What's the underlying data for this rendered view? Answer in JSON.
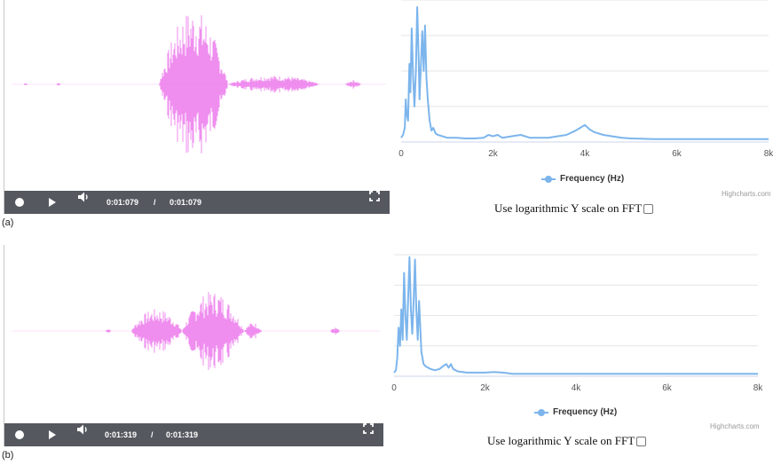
{
  "panels": [
    {
      "tag": "(a)",
      "player": {
        "current_time": "0:01:079",
        "separator": "/",
        "total_time": "0:01:079"
      },
      "fft": {
        "x_ticks": [
          "0",
          "2k",
          "4k",
          "6k",
          "8k"
        ],
        "legend": "Frequency (Hz)",
        "credits": "Highcharts.com",
        "log_label": "Use logarithmic Y scale on FFT",
        "log_checked": false
      }
    },
    {
      "tag": "(b)",
      "player": {
        "current_time": "0:01:319",
        "separator": "/",
        "total_time": "0:01:319"
      },
      "fft": {
        "x_ticks": [
          "0",
          "2k",
          "4k",
          "6k",
          "8k"
        ],
        "legend": "Frequency (Hz)",
        "credits": "Highcharts.com",
        "log_label": "Use logarithmic Y scale on FFT",
        "log_checked": false
      }
    }
  ],
  "colors": {
    "waveform": "#ee82ee",
    "fft_series": "#7cb5ec",
    "player_bar": "#55595f",
    "grid": "#e6e6e6"
  },
  "icons": [
    "record-icon",
    "play-icon",
    "volume-icon",
    "fullscreen-icon",
    "checkbox"
  ],
  "chart_data": [
    {
      "type": "line",
      "title": "",
      "xlabel": "",
      "ylabel": "",
      "x_unit": "Hz",
      "xlim": [
        0,
        8000
      ],
      "ylim": [
        0,
        1
      ],
      "grid": true,
      "legend_position": "bottom-center",
      "series": [
        {
          "name": "Frequency (Hz)",
          "x": [
            0,
            40,
            80,
            100,
            120,
            150,
            180,
            200,
            230,
            260,
            290,
            320,
            350,
            380,
            400,
            430,
            460,
            490,
            520,
            550,
            580,
            620,
            660,
            700,
            750,
            800,
            900,
            1000,
            1200,
            1400,
            1600,
            1800,
            1900,
            2000,
            2100,
            2200,
            2400,
            2600,
            2800,
            3000,
            3200,
            3400,
            3600,
            3800,
            3900,
            4000,
            4100,
            4200,
            4400,
            4600,
            4800,
            5000,
            5500,
            6000,
            6500,
            7000,
            7500,
            8000
          ],
          "values": [
            0.03,
            0.05,
            0.1,
            0.3,
            0.2,
            0.15,
            0.55,
            0.35,
            0.8,
            0.45,
            0.25,
            0.5,
            0.95,
            0.6,
            0.3,
            0.55,
            0.78,
            0.5,
            0.82,
            0.45,
            0.3,
            0.15,
            0.08,
            0.1,
            0.06,
            0.05,
            0.04,
            0.03,
            0.03,
            0.025,
            0.025,
            0.03,
            0.05,
            0.04,
            0.05,
            0.03,
            0.04,
            0.05,
            0.03,
            0.03,
            0.03,
            0.04,
            0.05,
            0.08,
            0.1,
            0.12,
            0.09,
            0.07,
            0.05,
            0.04,
            0.03,
            0.025,
            0.02,
            0.02,
            0.02,
            0.02,
            0.02,
            0.02
          ]
        }
      ]
    },
    {
      "type": "line",
      "title": "",
      "xlabel": "",
      "ylabel": "",
      "x_unit": "Hz",
      "xlim": [
        0,
        8000
      ],
      "ylim": [
        0,
        1
      ],
      "grid": true,
      "legend_position": "bottom-center",
      "series": [
        {
          "name": "Frequency (Hz)",
          "x": [
            0,
            40,
            70,
            100,
            130,
            160,
            190,
            220,
            250,
            280,
            310,
            340,
            370,
            400,
            430,
            460,
            490,
            520,
            550,
            600,
            650,
            700,
            800,
            900,
            1000,
            1100,
            1150,
            1200,
            1250,
            1300,
            1400,
            1600,
            1800,
            2000,
            2200,
            2400,
            2600,
            2800,
            3000,
            3500,
            4000,
            4500,
            5000,
            5500,
            6000,
            6500,
            7000,
            7500,
            8000
          ],
          "values": [
            0.03,
            0.05,
            0.15,
            0.4,
            0.25,
            0.55,
            0.3,
            0.85,
            0.5,
            0.3,
            0.65,
            0.98,
            0.55,
            0.35,
            0.6,
            0.96,
            0.55,
            0.3,
            0.62,
            0.2,
            0.1,
            0.08,
            0.06,
            0.05,
            0.06,
            0.09,
            0.1,
            0.07,
            0.1,
            0.06,
            0.04,
            0.03,
            0.03,
            0.03,
            0.035,
            0.03,
            0.02,
            0.02,
            0.02,
            0.02,
            0.02,
            0.02,
            0.02,
            0.02,
            0.02,
            0.02,
            0.02,
            0.02,
            0.02
          ]
        }
      ]
    }
  ]
}
